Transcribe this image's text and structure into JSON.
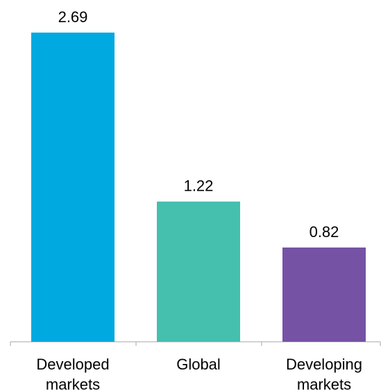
{
  "chart_data": {
    "type": "bar",
    "categories": [
      [
        "Developed",
        "markets"
      ],
      [
        "Global"
      ],
      [
        "Developing",
        "markets"
      ]
    ],
    "values": [
      2.69,
      1.22,
      0.82
    ],
    "value_labels": [
      "2.69",
      "1.22",
      "0.82"
    ],
    "colors": [
      "#00A9E0",
      "#45BFAE",
      "#7652A5"
    ],
    "ylim": [
      0,
      2.69
    ],
    "grid": false,
    "legend": "none",
    "axis_color": "#A6A6A6",
    "title": "",
    "xlabel": "",
    "ylabel": ""
  }
}
